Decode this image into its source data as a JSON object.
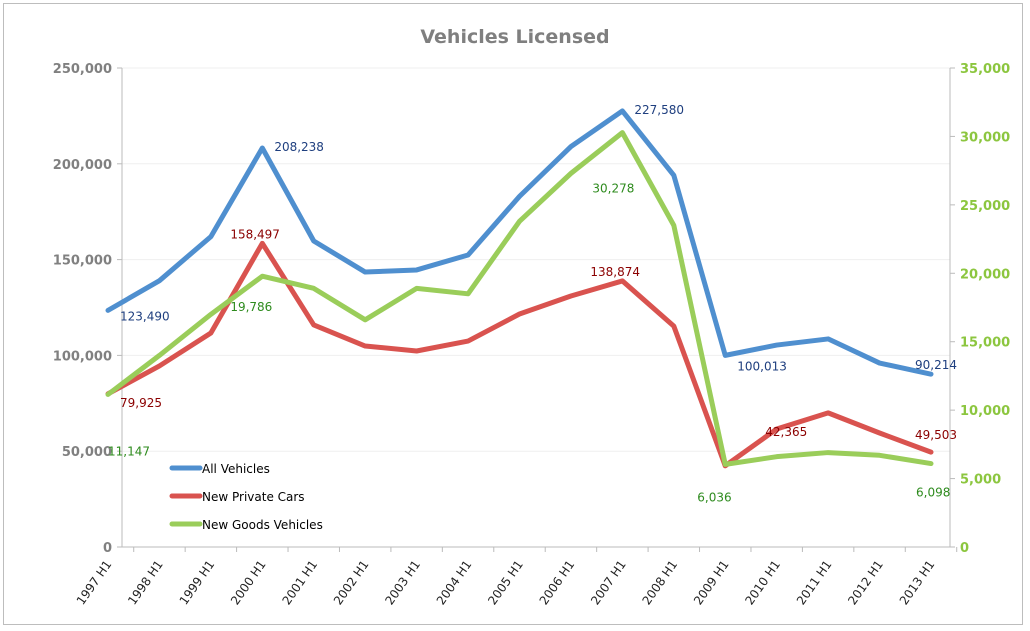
{
  "chart_data": {
    "type": "line",
    "title": "Vehicles Licensed",
    "categories": [
      "1997 H1",
      "1998 H1",
      "1999 H1",
      "2000 H1",
      "2001 H1",
      "2002 H1",
      "2003 H1",
      "2004 H1",
      "2005 H1",
      "2006 H1",
      "2007 H1",
      "2008 H1",
      "2009 H1",
      "2010 H1",
      "2011 H1",
      "2012 H1",
      "2013 H1"
    ],
    "y_left": {
      "range": [
        0,
        250000
      ],
      "ticks": [
        "0",
        "50,000",
        "100,000",
        "150,000",
        "200,000",
        "250,000"
      ],
      "color": "#808080"
    },
    "y_right": {
      "range": [
        0,
        35000
      ],
      "ticks": [
        "0",
        "5,000",
        "10,000",
        "15,000",
        "20,000",
        "25,000",
        "30,000",
        "35,000"
      ],
      "color": "#8cc63f"
    },
    "grid": true,
    "legend_placement": "bottom-left-inside",
    "series": [
      {
        "name": "All Vehicles",
        "axis": "left",
        "color": "#4f8fcf",
        "label_color": "#1f3f7f",
        "values": [
          123490,
          139000,
          162000,
          208238,
          159700,
          143500,
          144600,
          152400,
          183000,
          209000,
          227580,
          194000,
          100013,
          105400,
          108600,
          96000,
          90214
        ],
        "labels": {
          "0": "123,490",
          "3": "208,238",
          "10": "227,580",
          "12": "100,013",
          "16": "90,214"
        }
      },
      {
        "name": "New Private Cars",
        "axis": "left",
        "color": "#d9534f",
        "label_color": "#8b0000",
        "values": [
          79925,
          94500,
          111700,
          158497,
          115900,
          104900,
          102300,
          107500,
          121600,
          131000,
          138874,
          115300,
          42365,
          61600,
          70000,
          59500,
          49503
        ],
        "labels": {
          "0": "79,925",
          "3": "158,497",
          "10": "138,874",
          "12": "42,365",
          "16": "49,503"
        }
      },
      {
        "name": "New Goods Vehicles",
        "axis": "right",
        "color": "#9acd5a",
        "label_color": "#2e8b1e",
        "values": [
          11147,
          14000,
          17000,
          19786,
          18900,
          16600,
          18900,
          18500,
          23800,
          27300,
          30278,
          23500,
          6036,
          6600,
          6900,
          6700,
          6098
        ],
        "labels": {
          "0": "11,147",
          "3": "19,786",
          "10": "30,278",
          "12": "6,036",
          "16": "6,098"
        }
      }
    ]
  }
}
